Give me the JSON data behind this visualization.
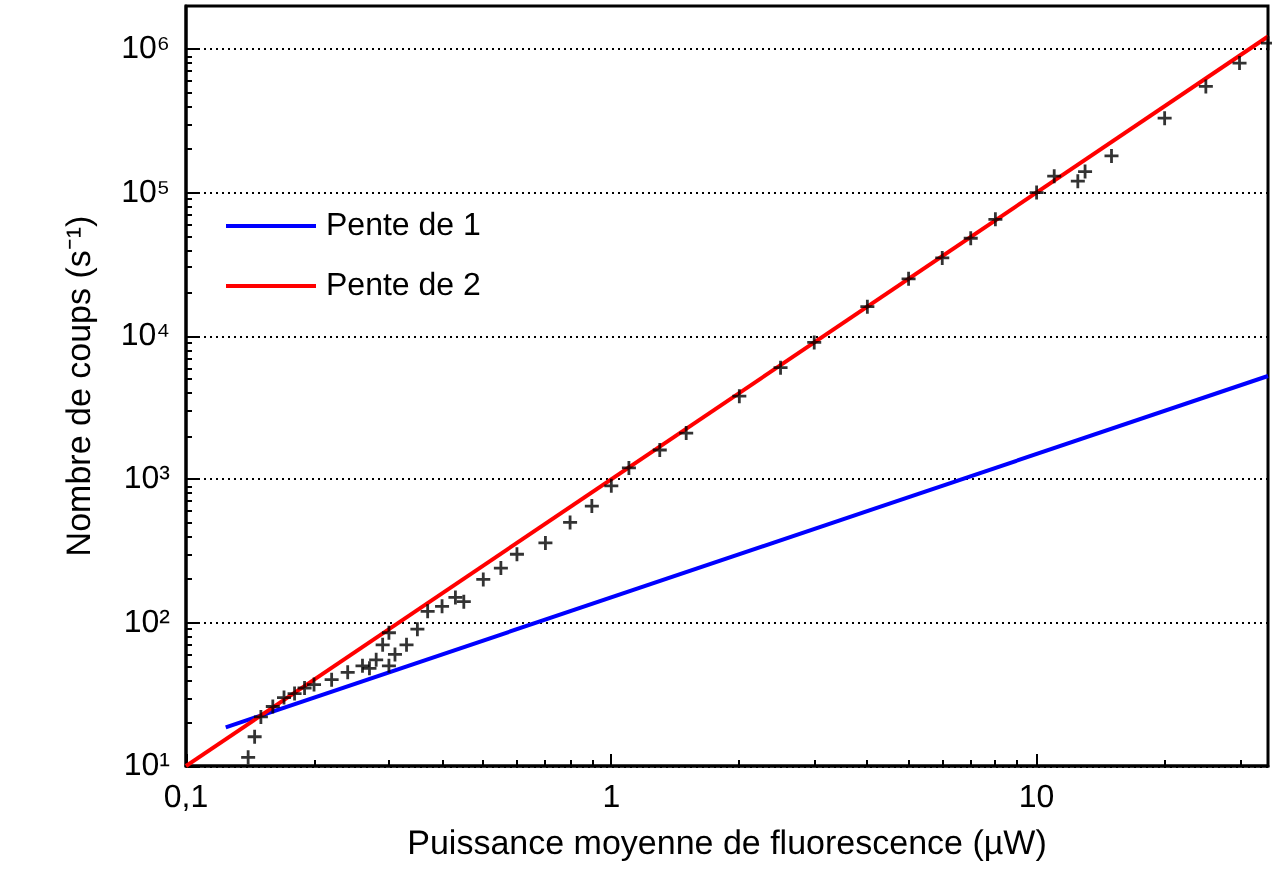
{
  "chart_data": {
    "type": "scatter",
    "xlabel": "Puissance moyenne de fluorescence (µW)",
    "ylabel": "Nombre de coups (s⁻¹)",
    "log": "xy",
    "grid": "y",
    "legend": "top left",
    "xlim": [
      0.1,
      35
    ],
    "ylim": [
      10,
      2000000
    ],
    "xticks": [
      {
        "value": 0.1,
        "label": "0,1"
      },
      1,
      10
    ],
    "yticks": [
      {
        "value": 10,
        "label": "10¹"
      },
      {
        "value": 100,
        "label": "10²"
      },
      {
        "value": 1000,
        "label": "10³"
      },
      {
        "value": 10000,
        "label": "10⁴"
      },
      {
        "value": 100000,
        "label": "10⁵"
      },
      {
        "value": 1000000,
        "label": "10⁶"
      }
    ],
    "series": [
      {
        "color": "#000000",
        "marker": "cross",
        "x": [
          0.14,
          0.145,
          0.15,
          0.16,
          0.17,
          0.18,
          0.19,
          0.2,
          0.22,
          0.24,
          0.26,
          0.27,
          0.28,
          0.29,
          0.3,
          0.3,
          0.31,
          0.33,
          0.35,
          0.37,
          0.4,
          0.43,
          0.45,
          0.5,
          0.55,
          0.6,
          0.7,
          0.8,
          0.9,
          1.0,
          1.1,
          1.3,
          1.5,
          2,
          2.5,
          3,
          4,
          5,
          6,
          7,
          8,
          10,
          11,
          12.5,
          13,
          15,
          20,
          25,
          30,
          35
        ],
        "values": [
          11.5,
          16,
          22,
          26,
          30,
          32,
          35,
          37,
          40,
          45,
          50,
          48,
          55,
          70,
          85,
          50,
          60,
          70,
          90,
          120,
          130,
          150,
          140,
          200,
          240,
          300,
          360,
          500,
          650,
          900,
          1200,
          1600,
          2100,
          3800,
          6000,
          9000,
          16000,
          25000,
          35000,
          48000,
          65000,
          100000,
          130000,
          120000,
          140000,
          180000,
          330000,
          550000,
          800000,
          1100000
        ]
      },
      {
        "type": "line",
        "name": "Pente de 1",
        "color": "#0000ff",
        "marker": "none",
        "x": [
          0.124,
          35
        ],
        "values": [
          18.6,
          5250
        ]
      },
      {
        "type": "line",
        "name": "Pente de 2",
        "color": "#ff0000",
        "marker": "none",
        "x": [
          0.1,
          35
        ],
        "values": [
          10,
          1225000
        ]
      }
    ]
  }
}
